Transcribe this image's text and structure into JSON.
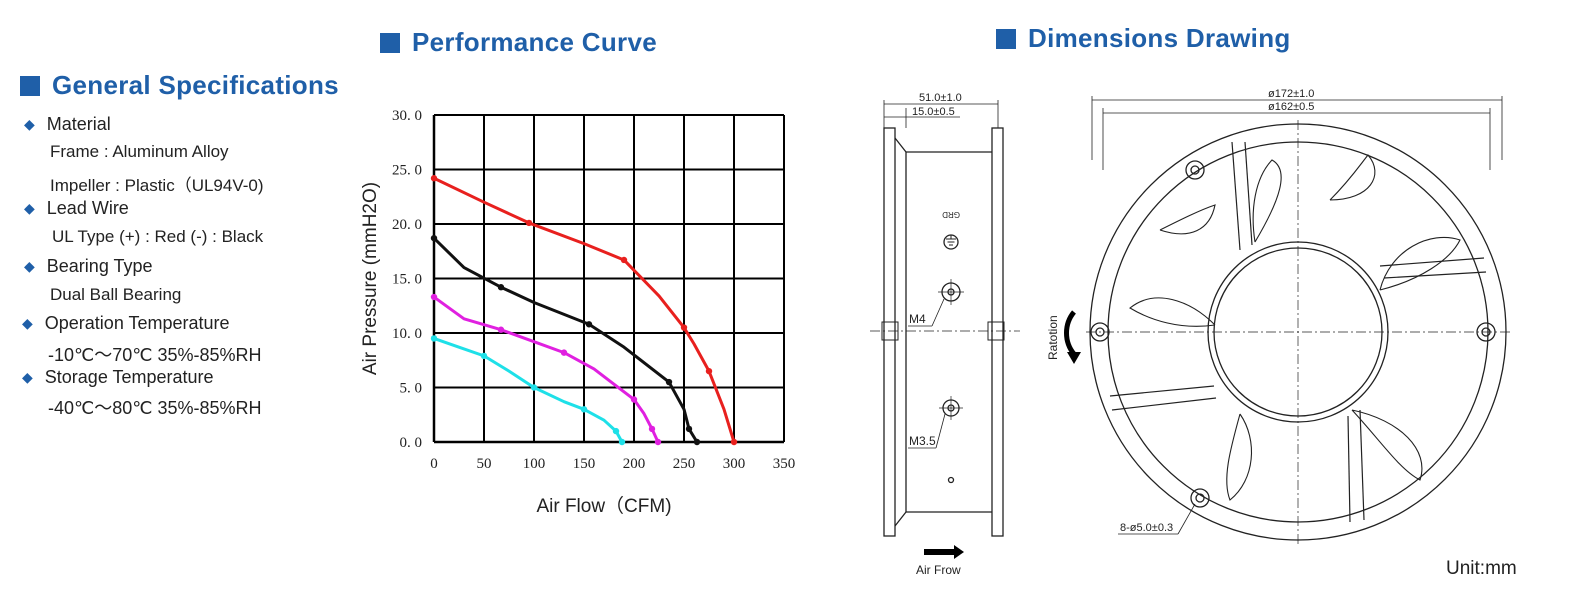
{
  "general": {
    "title": "General  Specifications",
    "items": [
      {
        "label": "Material",
        "details": [
          "Frame :  Aluminum Alloy",
          "Impeller : Plastic（UL94V-0)"
        ]
      },
      {
        "label": "Lead  Wire",
        "details": [
          "UL  Type    (+) : Red   (-) : Black"
        ]
      },
      {
        "label": "Bearing  Type",
        "details": [
          "Dual  Ball  Bearing"
        ]
      },
      {
        "label": "Operation  Temperature",
        "details": [
          "-10℃～70℃  35%-85%RH"
        ]
      },
      {
        "label": "Storage  Temperature",
        "details": [
          "-40℃～80℃  35%-85%RH"
        ]
      }
    ]
  },
  "performance": {
    "title": "Performance  Curve"
  },
  "dimensions": {
    "title": "Dimensions  Drawing",
    "labels": {
      "depth": "51.0±1.0",
      "flange": "15.0±0.5",
      "outer_dia": "ø172±1.0",
      "inner_dia": "ø162±0.5",
      "grd": "GRD",
      "m4": "M4",
      "m35": "M3.5",
      "holes": "8-ø5.0±0.3",
      "rotation": "Ratotion",
      "airflow": "Air Frow"
    },
    "unit": "Unit:mm"
  },
  "chart_data": {
    "type": "line",
    "title": "",
    "xlabel": "Air Flow（CFM)",
    "ylabel": "Air Pressure (mmH2O)",
    "xlim": [
      0,
      350
    ],
    "ylim": [
      0,
      30
    ],
    "x_ticks": [
      "0",
      "50",
      "100",
      "150",
      "200",
      "250",
      "300",
      "350"
    ],
    "y_ticks": [
      "0. 0",
      "5. 0",
      "10. 0",
      "15. 0",
      "20. 0",
      "25. 0",
      "30. 0"
    ],
    "grid": true,
    "series": [
      {
        "color": "#e8201e",
        "points": [
          [
            0,
            24.2
          ],
          [
            50,
            22
          ],
          [
            95,
            20.1
          ],
          [
            150,
            18.2
          ],
          [
            190,
            16.7
          ],
          [
            225,
            13.4
          ],
          [
            250,
            10.5
          ],
          [
            260,
            9.0
          ],
          [
            275,
            6.5
          ],
          [
            290,
            3.0
          ],
          [
            300,
            0
          ]
        ]
      },
      {
        "color": "#111111",
        "points": [
          [
            0,
            18.7
          ],
          [
            30,
            16.0
          ],
          [
            67,
            14.2
          ],
          [
            100,
            12.8
          ],
          [
            155,
            10.8
          ],
          [
            190,
            8.7
          ],
          [
            235,
            5.5
          ],
          [
            250,
            3.0
          ],
          [
            255,
            1.2
          ],
          [
            263,
            0
          ]
        ]
      },
      {
        "color": "#e020e0",
        "points": [
          [
            0,
            13.3
          ],
          [
            30,
            11.3
          ],
          [
            67,
            10.3
          ],
          [
            100,
            9.2
          ],
          [
            130,
            8.2
          ],
          [
            160,
            6.7
          ],
          [
            200,
            3.9
          ],
          [
            210,
            2.6
          ],
          [
            218,
            1.2
          ],
          [
            224,
            0
          ]
        ]
      },
      {
        "color": "#1ee0e8",
        "points": [
          [
            0,
            9.5
          ],
          [
            25,
            8.7
          ],
          [
            50,
            7.9
          ],
          [
            75,
            6.5
          ],
          [
            100,
            5.0
          ],
          [
            130,
            3.7
          ],
          [
            150,
            3.0
          ],
          [
            170,
            2.0
          ],
          [
            182,
            1.0
          ],
          [
            188,
            0
          ]
        ]
      }
    ]
  }
}
